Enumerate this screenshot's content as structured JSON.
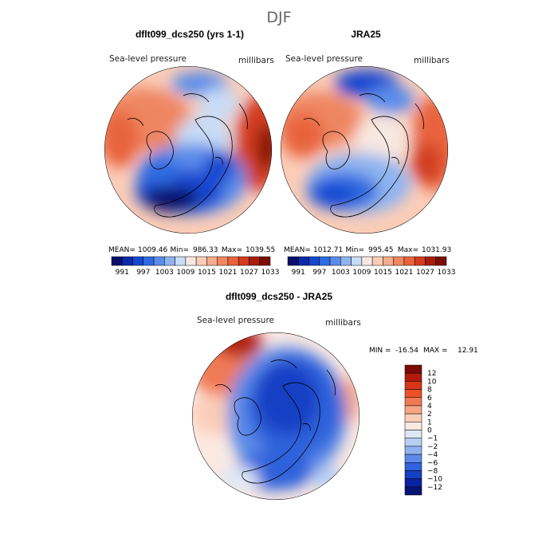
{
  "figure_title": "DJF",
  "chart_data": [
    {
      "type": "heatmap",
      "title": "dflt099_dcs250 (yrs 1-1)",
      "field_label": "Sea-level pressure",
      "units": "millibars",
      "stats": {
        "mean_label": "MEAN=",
        "mean": "1009.46",
        "min_label": "Min=",
        "min": "986.33",
        "max_label": "Max=",
        "max": "1039.55"
      },
      "colorbar_ticks": [
        "991",
        "997",
        "1003",
        "1009",
        "1015",
        "1021",
        "1027",
        "1033"
      ],
      "colors": [
        "#08106b",
        "#0a2aa8",
        "#1646d0",
        "#2f6ae0",
        "#5a8cea",
        "#8eb4f0",
        "#c8dcf6",
        "#f7e8e1",
        "#fbcdb8",
        "#f6ac8e",
        "#ef8662",
        "#e8633e",
        "#d23c20",
        "#a81c0c",
        "#7a0b06"
      ]
    },
    {
      "type": "heatmap",
      "title": "JRA25",
      "field_label": "Sea-level pressure",
      "units": "millibars",
      "stats": {
        "mean_label": "MEAN=",
        "mean": "1012.71",
        "min_label": "Min=",
        "min": "995.45",
        "max_label": "Max=",
        "max": "1031.93"
      },
      "colorbar_ticks": [
        "991",
        "997",
        "1003",
        "1009",
        "1015",
        "1021",
        "1027",
        "1033"
      ],
      "colors": [
        "#08106b",
        "#0a2aa8",
        "#1646d0",
        "#2f6ae0",
        "#5a8cea",
        "#8eb4f0",
        "#c8dcf6",
        "#f7e8e1",
        "#fbcdb8",
        "#f6ac8e",
        "#ef8662",
        "#e8633e",
        "#d23c20",
        "#a81c0c",
        "#7a0b06"
      ]
    },
    {
      "type": "heatmap",
      "title": "dflt099_dcs250 - JRA25",
      "field_label": "Sea-level pressure",
      "units": "millibars",
      "stats": {
        "min_label": "MIN =",
        "min": "-16.54",
        "max_label": "MAX =",
        "max": "12.91"
      },
      "colorbar_ticks": [
        "12",
        "10",
        "8",
        "6",
        "4",
        "2",
        "1",
        "0",
        "-1",
        "-2",
        "-4",
        "-6",
        "-8",
        "-10",
        "-12"
      ],
      "colors": [
        "#7a0b06",
        "#b01d0c",
        "#d8361a",
        "#ea5128",
        "#f07a55",
        "#f6a585",
        "#fbcdb8",
        "#fbe9e2",
        "#dde8f7",
        "#b8cff3",
        "#8fb2ef",
        "#5c8be8",
        "#2f62dc",
        "#163fc4",
        "#0a22a0",
        "#061274"
      ]
    }
  ]
}
